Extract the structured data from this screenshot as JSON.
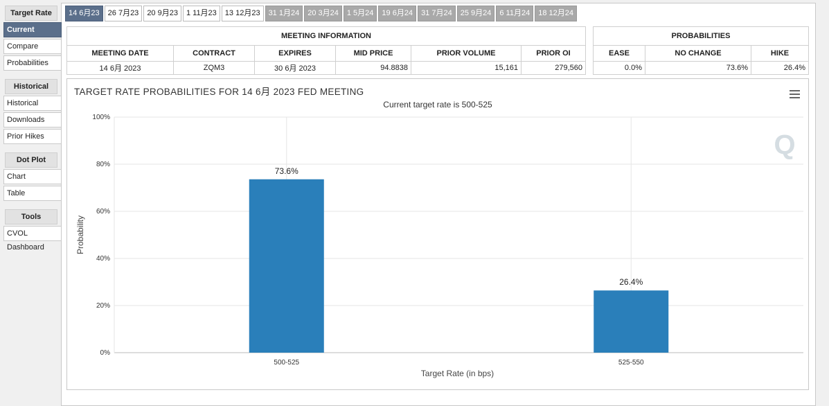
{
  "sidebar": {
    "sections": [
      {
        "title": "Target Rate",
        "items": [
          {
            "label": "Current",
            "active": true
          },
          {
            "label": "Compare"
          },
          {
            "label": "Probabilities"
          }
        ]
      },
      {
        "title": "Historical",
        "items": [
          {
            "label": "Historical"
          },
          {
            "label": "Downloads"
          },
          {
            "label": "Prior Hikes"
          }
        ]
      },
      {
        "title": "Dot Plot",
        "items": [
          {
            "label": "Chart"
          },
          {
            "label": "Table"
          }
        ]
      },
      {
        "title": "Tools",
        "items": [
          {
            "label": "CVOL Dashboard"
          }
        ]
      }
    ]
  },
  "meeting_tabs": [
    {
      "label": "14 6月23",
      "state": "active"
    },
    {
      "label": "26 7月23",
      "state": "normal"
    },
    {
      "label": "20 9月23",
      "state": "normal"
    },
    {
      "label": "1 11月23",
      "state": "normal"
    },
    {
      "label": "13 12月23",
      "state": "normal"
    },
    {
      "label": "31 1月24",
      "state": "future"
    },
    {
      "label": "20 3月24",
      "state": "future"
    },
    {
      "label": "1 5月24",
      "state": "future"
    },
    {
      "label": "19 6月24",
      "state": "future"
    },
    {
      "label": "31 7月24",
      "state": "future"
    },
    {
      "label": "25 9月24",
      "state": "future"
    },
    {
      "label": "6 11月24",
      "state": "future"
    },
    {
      "label": "18 12月24",
      "state": "future"
    }
  ],
  "meeting_info": {
    "title": "MEETING INFORMATION",
    "headers": [
      "MEETING DATE",
      "CONTRACT",
      "EXPIRES",
      "MID PRICE",
      "PRIOR VOLUME",
      "PRIOR OI"
    ],
    "row": [
      "14 6月 2023",
      "ZQM3",
      "30 6月 2023",
      "94.8838",
      "15,161",
      "279,560"
    ]
  },
  "probabilities": {
    "title": "PROBABILITIES",
    "headers": [
      "EASE",
      "NO CHANGE",
      "HIKE"
    ],
    "row": [
      "0.0%",
      "73.6%",
      "26.4%"
    ]
  },
  "chart": {
    "title": "TARGET RATE PROBABILITIES FOR 14 6月 2023 FED MEETING",
    "subtitle": "Current target rate is 500-525",
    "watermark": "Q",
    "menu_icon": "hamburger-menu-icon"
  },
  "chart_data": {
    "type": "bar",
    "categories": [
      "500-525",
      "525-550"
    ],
    "values": [
      73.6,
      26.4
    ],
    "data_labels": [
      "73.6%",
      "26.4%"
    ],
    "xlabel": "Target Rate (in bps)",
    "ylabel": "Probability",
    "ylim": [
      0,
      100
    ],
    "yticks": [
      "0%",
      "20%",
      "40%",
      "60%",
      "80%",
      "100%"
    ],
    "bar_color": "#2a7fba",
    "grid": true
  }
}
